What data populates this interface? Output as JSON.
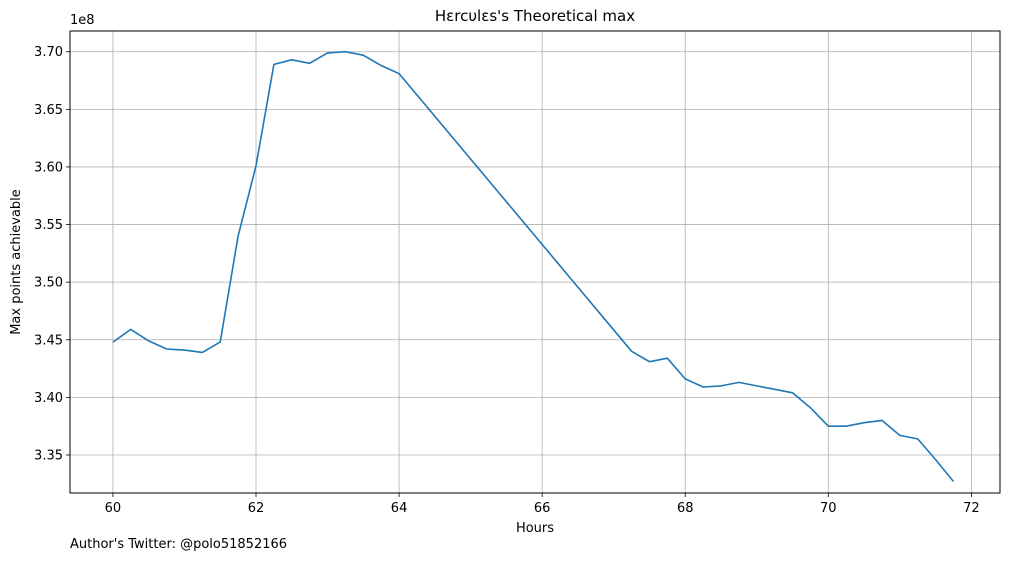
{
  "chart_data": {
    "type": "line",
    "title": "Hɛrcυlɛs's Theoretical max",
    "xlabel": "Hours",
    "ylabel": "Max points achievable",
    "y_offset_text": "1e8",
    "xlim": [
      59.4,
      72.4
    ],
    "ylim": [
      3.317,
      3.718
    ],
    "x_ticks": [
      60,
      62,
      64,
      66,
      68,
      70,
      72
    ],
    "x_tick_labels": [
      "60",
      "62",
      "64",
      "66",
      "68",
      "70",
      "72"
    ],
    "y_ticks": [
      3.35,
      3.4,
      3.45,
      3.5,
      3.55,
      3.6,
      3.65,
      3.7
    ],
    "y_tick_labels": [
      "3.35",
      "3.40",
      "3.45",
      "3.50",
      "3.55",
      "3.60",
      "3.65",
      "3.70"
    ],
    "grid": true,
    "line_color": "#1f77b4",
    "series": [
      {
        "x": [
          60.0,
          60.25,
          60.5,
          60.75,
          61.0,
          61.25,
          61.5,
          61.75,
          62.0,
          62.25,
          62.5,
          62.75,
          63.0,
          63.25,
          63.5,
          63.75,
          64.0,
          67.25,
          67.5,
          67.75,
          68.0,
          68.25,
          68.5,
          68.75,
          69.0,
          69.25,
          69.5,
          69.75,
          70.0,
          70.25,
          70.5,
          70.75,
          71.0,
          71.25,
          71.5,
          71.75
        ],
        "values": [
          3.448,
          3.459,
          3.449,
          3.442,
          3.441,
          3.439,
          3.448,
          3.54,
          3.601,
          3.689,
          3.693,
          3.69,
          3.699,
          3.7,
          3.697,
          3.688,
          3.681,
          3.44,
          3.431,
          3.434,
          3.416,
          3.409,
          3.41,
          3.413,
          3.41,
          3.407,
          3.404,
          3.391,
          3.375,
          3.375,
          3.378,
          3.38,
          3.367,
          3.364,
          3.346,
          3.327
        ]
      }
    ]
  },
  "footer": {
    "text": "Author's Twitter: @polo51852166"
  }
}
